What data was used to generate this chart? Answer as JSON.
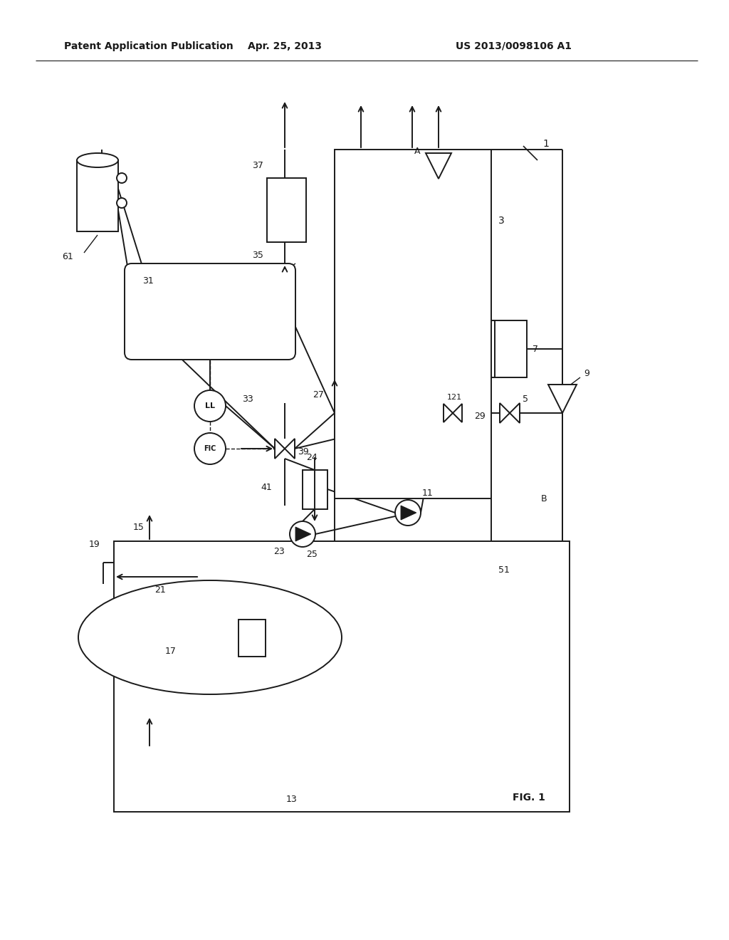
{
  "bg_color": "#ffffff",
  "header_left": "Patent Application Publication",
  "header_mid": "Apr. 25, 2013",
  "header_right": "US 2013/0098106 A1",
  "fig_label": "FIG. 1",
  "line_color": "#1a1a1a"
}
